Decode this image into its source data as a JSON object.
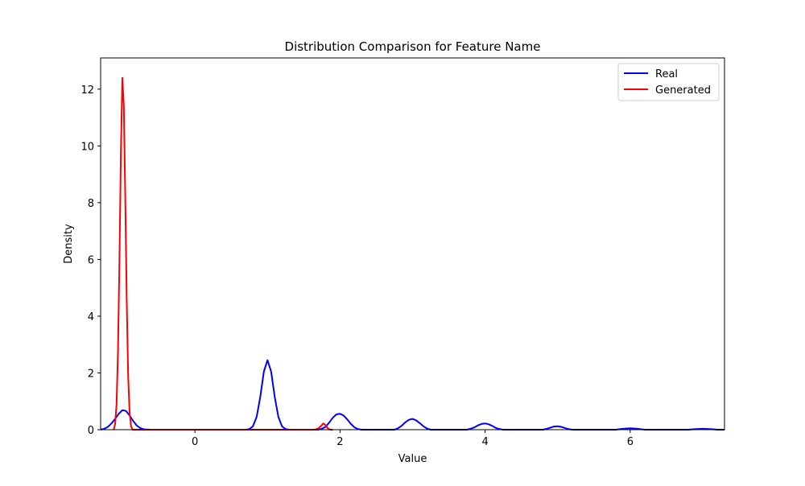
{
  "chart_data": {
    "type": "line",
    "title": "Distribution Comparison for Feature Name",
    "xlabel": "Value",
    "ylabel": "Density",
    "xlim": [
      -1.3,
      7.3
    ],
    "ylim": [
      0,
      13.1
    ],
    "x_ticks": [
      0,
      2,
      4,
      6
    ],
    "y_ticks": [
      0,
      2,
      4,
      6,
      8,
      10,
      12
    ],
    "grid": false,
    "legend_placement": "top-right",
    "series": [
      {
        "name": "Real",
        "color": "#0000ff",
        "points": [
          [
            -1.3,
            0.0
          ],
          [
            -1.25,
            0.03
          ],
          [
            -1.2,
            0.1
          ],
          [
            -1.15,
            0.22
          ],
          [
            -1.1,
            0.38
          ],
          [
            -1.05,
            0.56
          ],
          [
            -1.0,
            0.69
          ],
          [
            -0.95,
            0.66
          ],
          [
            -0.9,
            0.5
          ],
          [
            -0.85,
            0.3
          ],
          [
            -0.8,
            0.14
          ],
          [
            -0.75,
            0.05
          ],
          [
            -0.7,
            0.01
          ],
          [
            -0.6,
            0.0
          ],
          [
            0.0,
            0.0
          ],
          [
            0.7,
            0.0
          ],
          [
            0.75,
            0.02
          ],
          [
            0.8,
            0.12
          ],
          [
            0.85,
            0.45
          ],
          [
            0.9,
            1.15
          ],
          [
            0.95,
            2.05
          ],
          [
            1.0,
            2.45
          ],
          [
            1.05,
            2.05
          ],
          [
            1.1,
            1.15
          ],
          [
            1.15,
            0.45
          ],
          [
            1.2,
            0.12
          ],
          [
            1.25,
            0.02
          ],
          [
            1.3,
            0.0
          ],
          [
            1.7,
            0.0
          ],
          [
            1.75,
            0.03
          ],
          [
            1.8,
            0.1
          ],
          [
            1.85,
            0.25
          ],
          [
            1.9,
            0.42
          ],
          [
            1.95,
            0.54
          ],
          [
            2.0,
            0.56
          ],
          [
            2.05,
            0.5
          ],
          [
            2.1,
            0.36
          ],
          [
            2.15,
            0.2
          ],
          [
            2.2,
            0.08
          ],
          [
            2.25,
            0.02
          ],
          [
            2.3,
            0.0
          ],
          [
            2.75,
            0.0
          ],
          [
            2.8,
            0.05
          ],
          [
            2.85,
            0.14
          ],
          [
            2.9,
            0.26
          ],
          [
            2.95,
            0.35
          ],
          [
            3.0,
            0.38
          ],
          [
            3.05,
            0.33
          ],
          [
            3.1,
            0.23
          ],
          [
            3.15,
            0.12
          ],
          [
            3.2,
            0.04
          ],
          [
            3.25,
            0.0
          ],
          [
            3.75,
            0.0
          ],
          [
            3.8,
            0.03
          ],
          [
            3.85,
            0.08
          ],
          [
            3.9,
            0.15
          ],
          [
            3.95,
            0.2
          ],
          [
            4.0,
            0.22
          ],
          [
            4.05,
            0.19
          ],
          [
            4.1,
            0.13
          ],
          [
            4.15,
            0.06
          ],
          [
            4.2,
            0.02
          ],
          [
            4.25,
            0.0
          ],
          [
            4.8,
            0.0
          ],
          [
            4.85,
            0.03
          ],
          [
            4.9,
            0.07
          ],
          [
            4.95,
            0.11
          ],
          [
            5.0,
            0.12
          ],
          [
            5.05,
            0.1
          ],
          [
            5.1,
            0.06
          ],
          [
            5.15,
            0.02
          ],
          [
            5.2,
            0.0
          ],
          [
            5.8,
            0.0
          ],
          [
            5.9,
            0.03
          ],
          [
            6.0,
            0.05
          ],
          [
            6.1,
            0.03
          ],
          [
            6.2,
            0.0
          ],
          [
            6.8,
            0.0
          ],
          [
            6.9,
            0.02
          ],
          [
            7.0,
            0.03
          ],
          [
            7.1,
            0.02
          ],
          [
            7.2,
            0.0
          ],
          [
            7.3,
            0.0
          ]
        ]
      },
      {
        "name": "Generated",
        "color": "#ff0000",
        "points": [
          [
            -1.12,
            0.0
          ],
          [
            -1.1,
            0.2
          ],
          [
            -1.08,
            0.9
          ],
          [
            -1.06,
            2.8
          ],
          [
            -1.04,
            6.0
          ],
          [
            -1.02,
            9.8
          ],
          [
            -1.0,
            12.4
          ],
          [
            -0.98,
            11.4
          ],
          [
            -0.96,
            8.2
          ],
          [
            -0.94,
            4.6
          ],
          [
            -0.92,
            1.9
          ],
          [
            -0.9,
            0.6
          ],
          [
            -0.88,
            0.12
          ],
          [
            -0.86,
            0.0
          ],
          [
            0.0,
            0.0
          ],
          [
            1.0,
            0.0
          ],
          [
            1.65,
            0.0
          ],
          [
            1.7,
            0.04
          ],
          [
            1.74,
            0.14
          ],
          [
            1.77,
            0.22
          ],
          [
            1.8,
            0.16
          ],
          [
            1.83,
            0.05
          ],
          [
            1.86,
            0.0
          ],
          [
            1.9,
            0.0
          ]
        ]
      }
    ]
  }
}
